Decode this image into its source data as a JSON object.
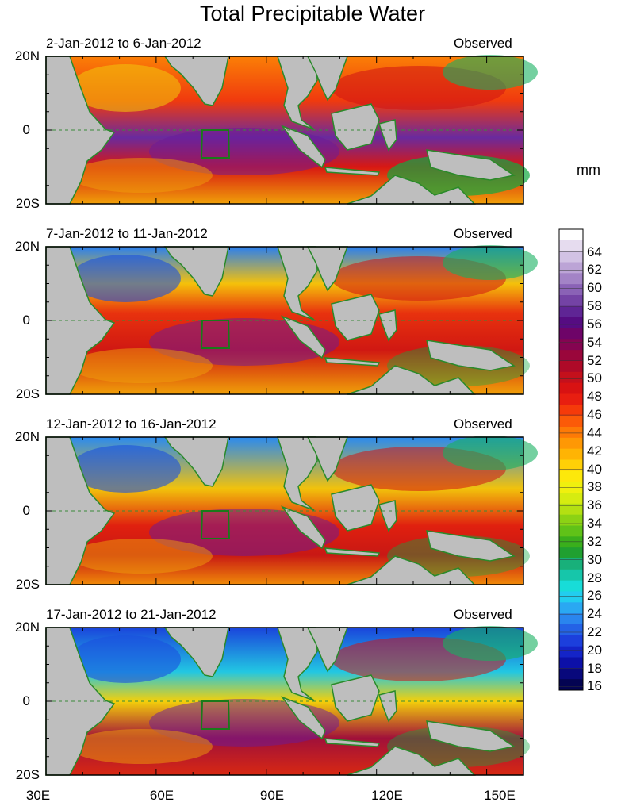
{
  "title": "Total Precipitable Water",
  "units": "mm",
  "panels": [
    {
      "date_range": "2-Jan-2012 to 6-Jan-2012",
      "status": "Observed"
    },
    {
      "date_range": "7-Jan-2012 to 11-Jan-2012",
      "status": "Observed"
    },
    {
      "date_range": "12-Jan-2012 to 16-Jan-2012",
      "status": "Observed"
    },
    {
      "date_range": "17-Jan-2012 to 21-Jan-2012",
      "status": "Observed"
    }
  ],
  "lat_labels": [
    "20N",
    "0",
    "20S"
  ],
  "lon_labels": [
    "30E",
    "60E",
    "90E",
    "120E",
    "150E"
  ],
  "colorbar": {
    "labels": [
      "64",
      "62",
      "60",
      "58",
      "56",
      "54",
      "52",
      "50",
      "48",
      "46",
      "44",
      "42",
      "40",
      "38",
      "36",
      "34",
      "32",
      "30",
      "28",
      "26",
      "24",
      "22",
      "20",
      "18",
      "16"
    ],
    "colors": [
      "#ffffff",
      "#e6dcef",
      "#d2c2e4",
      "#bca4d6",
      "#a383c6",
      "#8a62b6",
      "#7443a5",
      "#5f2595",
      "#560c82",
      "#6e0468",
      "#850451",
      "#9a063b",
      "#ae0a28",
      "#c4101c",
      "#d81212",
      "#e81e10",
      "#f53a0a",
      "#fb5a08",
      "#fd7a06",
      "#fe9805",
      "#ffb404",
      "#ffd007",
      "#fde80b",
      "#f0f00e",
      "#d6ec10",
      "#b4e012",
      "#8cd214",
      "#60c218",
      "#3aaf1c",
      "#20a030",
      "#18b07a",
      "#16c6aa",
      "#18dcd8",
      "#22cdef",
      "#2aa8f2",
      "#2a85ee",
      "#2462e6",
      "#1c3fdc",
      "#1424c8",
      "#0c10a8",
      "#08087c",
      "#040452"
    ]
  }
}
